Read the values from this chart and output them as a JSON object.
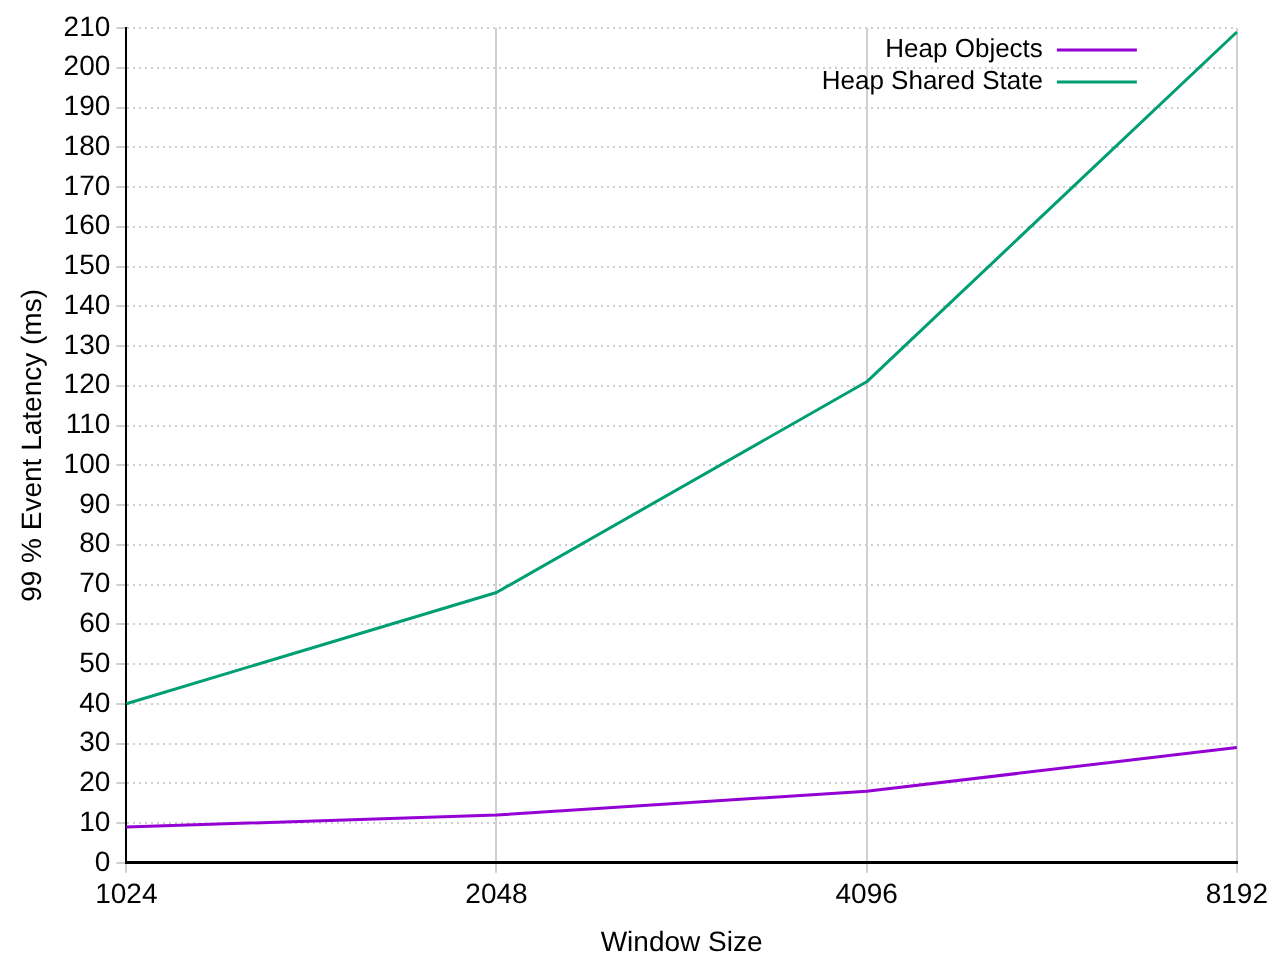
{
  "chart_data": {
    "type": "line",
    "xlabel": "Window Size",
    "ylabel": "99 % Event Latency (ms)",
    "categories": [
      "1024",
      "2048",
      "4096",
      "8192"
    ],
    "series": [
      {
        "name": "Heap Objects",
        "color": "#9400d3",
        "values": [
          9,
          12,
          18,
          29
        ]
      },
      {
        "name": "Heap Shared State",
        "color": "#009e73",
        "values": [
          40,
          68,
          121,
          209
        ]
      }
    ],
    "ylim": [
      0,
      210
    ],
    "yticks": [
      0,
      10,
      20,
      30,
      40,
      50,
      60,
      70,
      80,
      90,
      100,
      110,
      120,
      130,
      140,
      150,
      160,
      170,
      180,
      190,
      200,
      210
    ],
    "grid": true,
    "legend": "top right",
    "marker": "none",
    "line_style": "solid"
  }
}
